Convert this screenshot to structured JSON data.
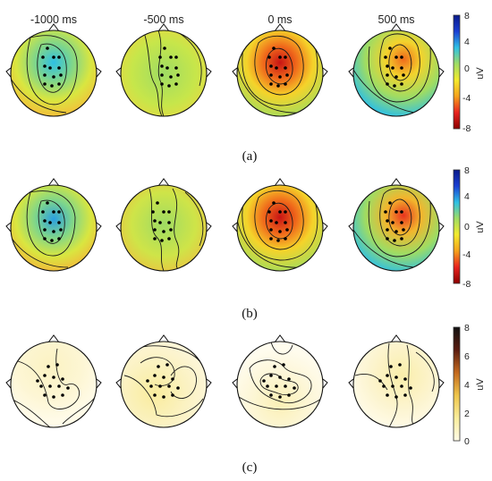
{
  "time_labels": [
    "-1000 ms",
    "-500 ms",
    "0 ms",
    "500 ms"
  ],
  "panels": [
    {
      "label": "(a)",
      "colorbar": {
        "unit": "uV",
        "ticks": [
          "8",
          "4",
          "0",
          "-4",
          "-8"
        ]
      }
    },
    {
      "label": "(b)",
      "colorbar": {
        "unit": "uV",
        "ticks": [
          "8",
          "4",
          "0",
          "-4",
          "-8"
        ]
      }
    },
    {
      "label": "(c)",
      "colorbar": {
        "unit": "uV",
        "ticks": [
          "8",
          "6",
          "4",
          "2",
          "0"
        ]
      }
    }
  ],
  "colors": {
    "diverging": [
      "#8b0000",
      "#e8221e",
      "#f5a21b",
      "#f3ea2c",
      "#9fdc63",
      "#2ec0e4",
      "#1a3fd3",
      "#0a1a8a"
    ],
    "sequential": [
      "#fffbe8",
      "#f9ed9c",
      "#eec54a",
      "#c46a1f",
      "#5a1c10",
      "#111111"
    ]
  }
}
